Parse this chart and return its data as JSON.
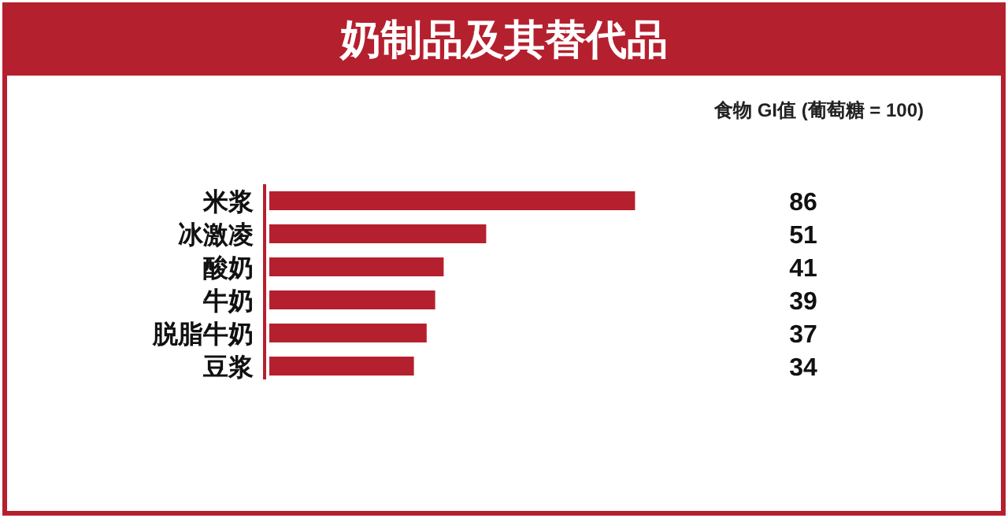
{
  "chart_data": {
    "type": "bar",
    "orientation": "horizontal",
    "title": "奶制品及其替代品",
    "subtitle": "食物 GI值 (葡萄糖 = 100)",
    "categories": [
      "米浆",
      "冰激凌",
      "酸奶",
      "牛奶",
      "脱脂牛奶",
      "豆浆"
    ],
    "values": [
      86,
      51,
      41,
      39,
      37,
      34
    ],
    "color": "#b5202e",
    "data_labels": true
  }
}
